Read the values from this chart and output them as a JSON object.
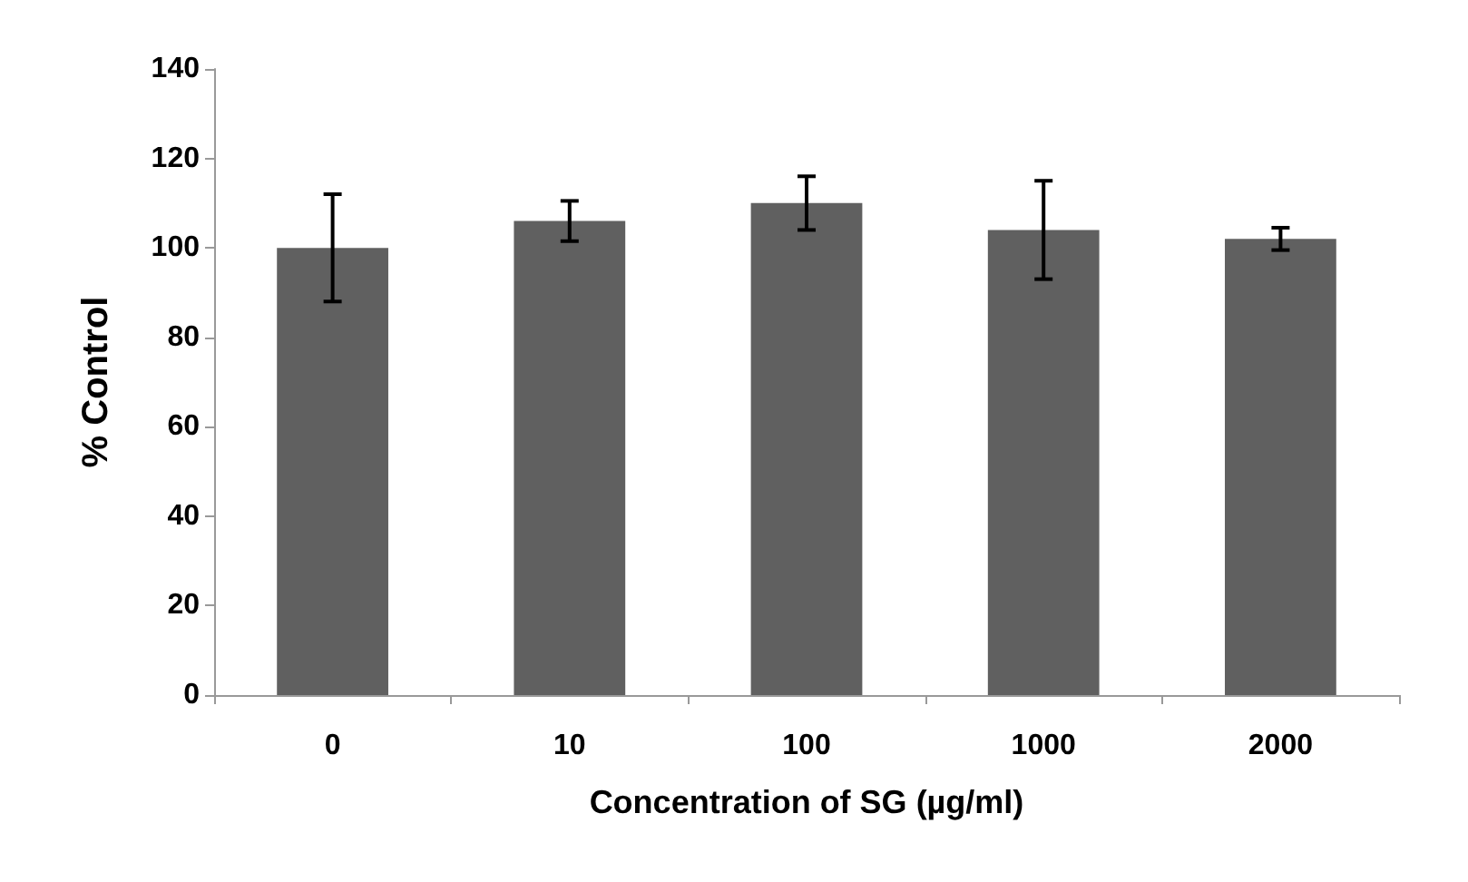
{
  "chart_data": {
    "type": "bar",
    "xlabel": "Concentration of SG (µg/ml)",
    "ylabel": "% Control",
    "categories": [
      "0",
      "10",
      "100",
      "1000",
      "2000"
    ],
    "values": [
      100,
      106,
      110,
      104,
      102
    ],
    "errors": [
      12,
      4.5,
      6,
      11,
      2.5
    ],
    "color": "#606060",
    "ylim": [
      0,
      140
    ],
    "yticks": [
      0,
      20,
      40,
      60,
      80,
      100,
      120,
      140
    ],
    "grid": false
  }
}
